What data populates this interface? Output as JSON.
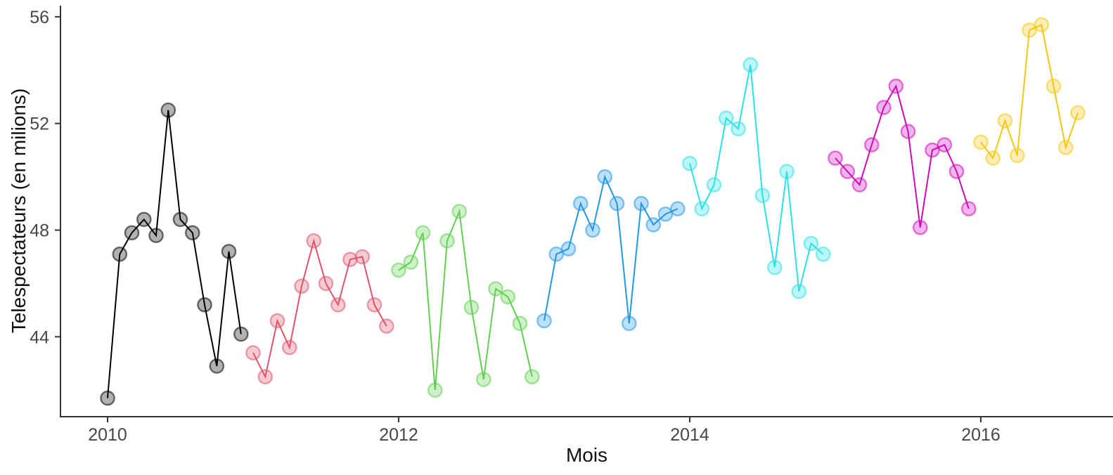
{
  "chart_data": {
    "type": "line",
    "title": "",
    "xlabel": "Mois",
    "ylabel": "Telespectateurs (en milions)",
    "x_axis": {
      "unit": "month",
      "start": "2010-01",
      "end": "2016-09"
    },
    "x_ticks": [
      2010,
      2012,
      2014,
      2016
    ],
    "x_tick_labels": [
      "2010",
      "2012",
      "2014",
      "2016"
    ],
    "y_ticks": [
      44,
      48,
      52,
      56
    ],
    "y_tick_labels": [
      "44",
      "48",
      "52",
      "56"
    ],
    "ylim": [
      41.0,
      56.8
    ],
    "grid": false,
    "legend": "none",
    "style": {
      "background": "#ffffff",
      "axis_color": "#333333",
      "tick_label_color": "#474747",
      "axis_title_color": "#111111",
      "points_translucent": true
    },
    "series": [
      {
        "name": "2010",
        "color": "#000000",
        "start_month_index": 0,
        "values": [
          41.7,
          47.1,
          47.9,
          48.4,
          47.8,
          52.5,
          48.4,
          47.9,
          45.2,
          42.9,
          47.2,
          44.1
        ]
      },
      {
        "name": "2011",
        "color": "#DF536B",
        "start_month_index": 12,
        "values": [
          43.4,
          42.5,
          44.6,
          43.6,
          45.9,
          47.6,
          46.0,
          45.2,
          46.9,
          47.0,
          45.2,
          44.4
        ]
      },
      {
        "name": "2012",
        "color": "#61D04F",
        "start_month_index": 24,
        "values": [
          46.5,
          46.8,
          47.9,
          42.0,
          47.6,
          48.7,
          45.1,
          42.4,
          45.8,
          45.5,
          44.5,
          42.5
        ]
      },
      {
        "name": "2013",
        "color": "#2297E6",
        "start_month_index": 36,
        "values": [
          44.6,
          47.1,
          47.3,
          49.0,
          48.0,
          50.0,
          49.0,
          44.5,
          49.0,
          48.2,
          48.6,
          48.8
        ]
      },
      {
        "name": "2014",
        "color": "#28E2E5",
        "start_month_index": 48,
        "values": [
          50.5,
          48.8,
          49.7,
          52.2,
          51.8,
          54.2,
          49.3,
          46.6,
          50.2,
          45.7,
          47.5,
          47.1
        ]
      },
      {
        "name": "2015",
        "color": "#CD0BBC",
        "start_month_index": 60,
        "values": [
          50.7,
          50.2,
          49.7,
          51.2,
          52.6,
          53.4,
          51.7,
          48.1,
          51.0,
          51.2,
          50.2,
          48.8
        ]
      },
      {
        "name": "2016",
        "color": "#F5C710",
        "start_month_index": 72,
        "values": [
          51.3,
          50.7,
          52.1,
          50.8,
          55.5,
          55.7,
          53.4,
          51.1,
          52.4
        ]
      }
    ]
  }
}
